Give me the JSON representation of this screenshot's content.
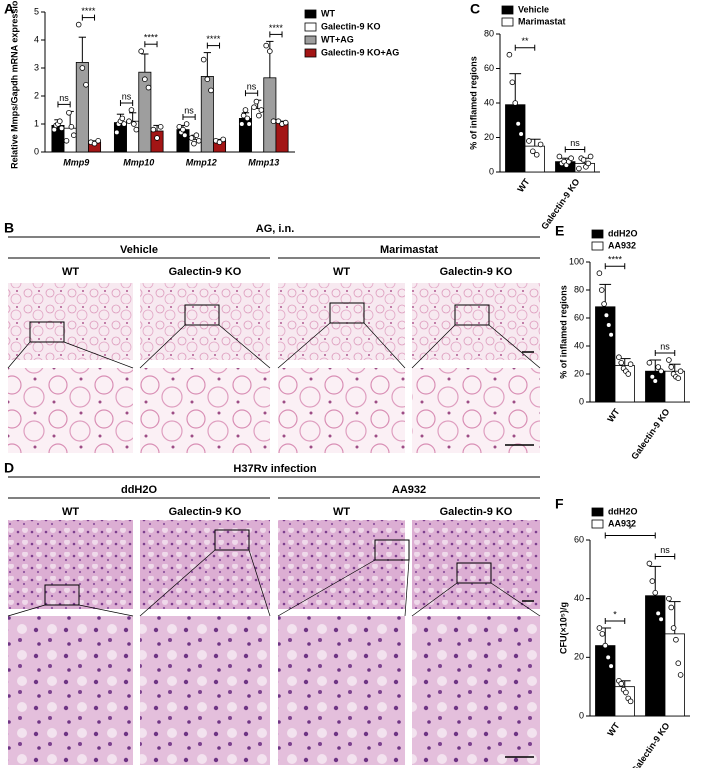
{
  "panels": [
    "A",
    "B",
    "C",
    "D",
    "E",
    "F"
  ],
  "chart_data": [
    {
      "type": "bar",
      "y_label": "Relative Mmps/Gapdh mRNA expression",
      "categories": [
        "Mmp9",
        "Mmp10",
        "Mmp12",
        "Mmp13"
      ],
      "ylim": [
        0,
        5
      ],
      "yticks": [
        0,
        1,
        2,
        3,
        4,
        5
      ],
      "series": [
        {
          "name": "WT",
          "color": "#000000",
          "values": [
            0.95,
            1.05,
            0.8,
            1.2
          ],
          "errors": [
            0.2,
            0.3,
            0.15,
            0.2
          ],
          "points": [
            [
              0.8,
              0.95,
              1.0,
              1.1,
              0.85
            ],
            [
              0.7,
              1.0,
              1.1,
              1.2,
              1.0
            ],
            [
              0.9,
              0.7,
              0.8,
              0.6,
              1.0
            ],
            [
              1.0,
              1.3,
              1.5,
              1.2,
              1.0
            ]
          ]
        },
        {
          "name": "Galectin-9 KO",
          "color": "#ffffff",
          "values": [
            0.85,
            1.1,
            0.45,
            1.55
          ],
          "errors": [
            0.6,
            0.3,
            0.15,
            0.3
          ],
          "points": [
            [
              0.4,
              1.4,
              0.9,
              0.6
            ],
            [
              1.1,
              1.5,
              1.0,
              0.8
            ],
            [
              0.5,
              0.3,
              0.6,
              0.4
            ],
            [
              1.6,
              1.8,
              1.3,
              1.5
            ]
          ]
        },
        {
          "name": "WT+AG",
          "color": "#9e9e9e",
          "values": [
            3.2,
            2.85,
            2.7,
            2.65
          ],
          "errors": [
            0.9,
            0.65,
            0.85,
            1.3
          ],
          "points": [
            [
              4.55,
              3.0,
              2.4
            ],
            [
              3.6,
              2.6,
              2.3
            ],
            [
              3.3,
              2.6,
              2.2
            ],
            [
              3.8,
              3.6,
              1.1
            ]
          ]
        },
        {
          "name": "Galectin-9 KO+AG",
          "color": "#a31515",
          "values": [
            0.35,
            0.75,
            0.4,
            1.05
          ],
          "errors": [
            0.05,
            0.2,
            0.05,
            0.05
          ],
          "points": [
            [
              0.35,
              0.3,
              0.4
            ],
            [
              0.8,
              0.5,
              0.9
            ],
            [
              0.4,
              0.35,
              0.45
            ],
            [
              1.1,
              1.0,
              1.05
            ]
          ]
        }
      ],
      "annotations": [
        {
          "text": "ns",
          "a": [
            0,
            0
          ],
          "b": [
            0,
            1
          ]
        },
        {
          "text": "****",
          "a": [
            0,
            2
          ],
          "b": [
            0,
            3
          ]
        },
        {
          "text": "ns",
          "a": [
            1,
            0
          ],
          "b": [
            1,
            1
          ]
        },
        {
          "text": "****",
          "a": [
            1,
            2
          ],
          "b": [
            1,
            3
          ]
        },
        {
          "text": "ns",
          "a": [
            2,
            0
          ],
          "b": [
            2,
            1
          ]
        },
        {
          "text": "****",
          "a": [
            2,
            2
          ],
          "b": [
            2,
            3
          ]
        },
        {
          "text": "ns",
          "a": [
            3,
            0
          ],
          "b": [
            3,
            1
          ]
        },
        {
          "text": "****",
          "a": [
            3,
            2
          ],
          "b": [
            3,
            3
          ]
        }
      ]
    },
    {
      "type": "bar",
      "y_label": "% of inflamed regions",
      "categories": [
        "WT",
        "Galectin-9 KO"
      ],
      "ylim": [
        0,
        80
      ],
      "yticks": [
        0,
        20,
        40,
        60,
        80
      ],
      "series": [
        {
          "name": "Vehicle",
          "color": "#000000",
          "values": [
            39,
            6
          ],
          "errors": [
            18,
            2
          ],
          "points": [
            [
              68,
              52,
              40,
              28,
              22
            ],
            [
              9,
              5,
              6,
              4,
              6,
              8
            ]
          ]
        },
        {
          "name": "Marimastat",
          "color": "#ffffff",
          "values": [
            15,
            5
          ],
          "errors": [
            4,
            3
          ],
          "points": [
            [
              18,
              12,
              10,
              16
            ],
            [
              2,
              8,
              7,
              3,
              5,
              9
            ]
          ]
        }
      ],
      "annotations": [
        {
          "text": "**",
          "a": [
            0,
            0
          ],
          "b": [
            0,
            1
          ]
        },
        {
          "text": "ns",
          "a": [
            1,
            0
          ],
          "b": [
            1,
            1
          ]
        }
      ]
    },
    {
      "type": "bar",
      "y_label": "% of inflamed regions",
      "categories": [
        "WT",
        "Galectin-9 KO"
      ],
      "ylim": [
        0,
        100
      ],
      "yticks": [
        0,
        20,
        40,
        60,
        80,
        100
      ],
      "series": [
        {
          "name": "ddH2O",
          "color": "#000000",
          "values": [
            68,
            22
          ],
          "errors": [
            16,
            8
          ],
          "points": [
            [
              92,
              80,
              70,
              62,
              55,
              48
            ],
            [
              28,
              18,
              15,
              25,
              22
            ]
          ]
        },
        {
          "name": "AA932",
          "color": "#ffffff",
          "values": [
            26,
            22
          ],
          "errors": [
            5,
            5
          ],
          "points": [
            [
              32,
              28,
              24,
              22,
              20,
              27
            ],
            [
              30,
              25,
              20,
              18,
              17,
              22
            ]
          ]
        }
      ],
      "annotations": [
        {
          "text": "****",
          "a": [
            0,
            0
          ],
          "b": [
            0,
            1
          ]
        },
        {
          "text": "ns",
          "a": [
            1,
            0
          ],
          "b": [
            1,
            1
          ]
        }
      ]
    },
    {
      "type": "bar",
      "y_label": "CFU(×10⁵)/g",
      "categories": [
        "WT",
        "Galectin-9 KO"
      ],
      "ylim": [
        0,
        60
      ],
      "yticks": [
        0,
        20,
        40,
        60
      ],
      "series": [
        {
          "name": "ddH2O",
          "color": "#000000",
          "values": [
            24,
            41
          ],
          "errors": [
            6,
            10
          ],
          "points": [
            [
              30,
              28,
              24,
              20,
              17
            ],
            [
              52,
              46,
              42,
              35,
              33
            ]
          ]
        },
        {
          "name": "AA932",
          "color": "#ffffff",
          "values": [
            10,
            28
          ],
          "errors": [
            2,
            11
          ],
          "points": [
            [
              12,
              11,
              9,
              8,
              6,
              5
            ],
            [
              40,
              37,
              30,
              26,
              18,
              14
            ]
          ]
        }
      ],
      "annotations": [
        {
          "text": "*",
          "a": [
            0,
            0
          ],
          "b": [
            0,
            1
          ]
        },
        {
          "text": "ns",
          "a": [
            1,
            0
          ],
          "b": [
            1,
            1
          ]
        },
        {
          "text": "*",
          "a": [
            0,
            0
          ],
          "b": [
            1,
            0
          ]
        }
      ]
    }
  ],
  "histology": [
    {
      "title": "AG, i.n.",
      "groups": [
        "Vehicle",
        "Marimastat"
      ],
      "columns": [
        "WT",
        "Galectin-9 KO",
        "WT",
        "Galectin-9 KO"
      ]
    },
    {
      "title": "H37Rv infection",
      "groups": [
        "ddH2O",
        "AA932"
      ],
      "columns": [
        "WT",
        "Galectin-9 KO",
        "WT",
        "Galectin-9 KO"
      ]
    }
  ]
}
